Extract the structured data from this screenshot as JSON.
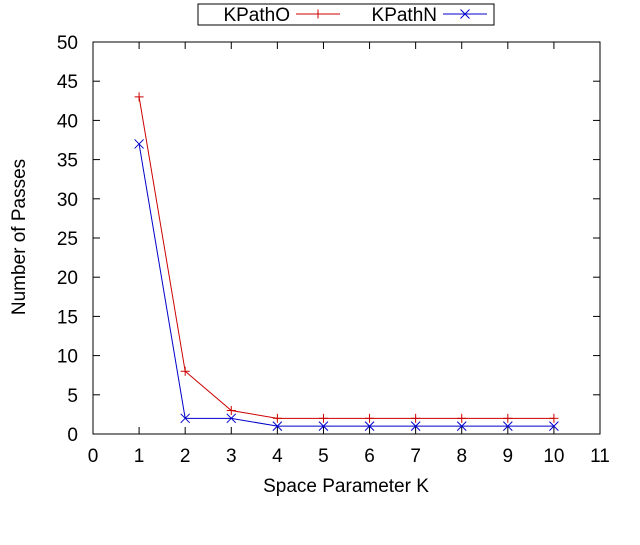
{
  "chart_data": {
    "type": "line",
    "xlabel": "Space Parameter K",
    "ylabel": "Number of Passes",
    "xlim": [
      0,
      11
    ],
    "ylim": [
      0,
      50
    ],
    "xticks": [
      0,
      1,
      2,
      3,
      4,
      5,
      6,
      7,
      8,
      9,
      10,
      11
    ],
    "yticks": [
      0,
      5,
      10,
      15,
      20,
      25,
      30,
      35,
      40,
      45,
      50
    ],
    "grid": false,
    "legend_position": "top-center",
    "series": [
      {
        "name": "KPathO",
        "color": "#cc0000",
        "marker": "plus",
        "x": [
          1,
          2,
          3,
          4,
          5,
          6,
          7,
          8,
          9,
          10
        ],
        "y": [
          43,
          8,
          3,
          2,
          2,
          2,
          2,
          2,
          2,
          2
        ]
      },
      {
        "name": "KPathN",
        "color": "#0000cc",
        "marker": "cross",
        "x": [
          1,
          2,
          3,
          4,
          5,
          6,
          7,
          8,
          9,
          10
        ],
        "y": [
          37,
          2,
          2,
          1,
          1,
          1,
          1,
          1,
          1,
          1
        ]
      }
    ]
  }
}
